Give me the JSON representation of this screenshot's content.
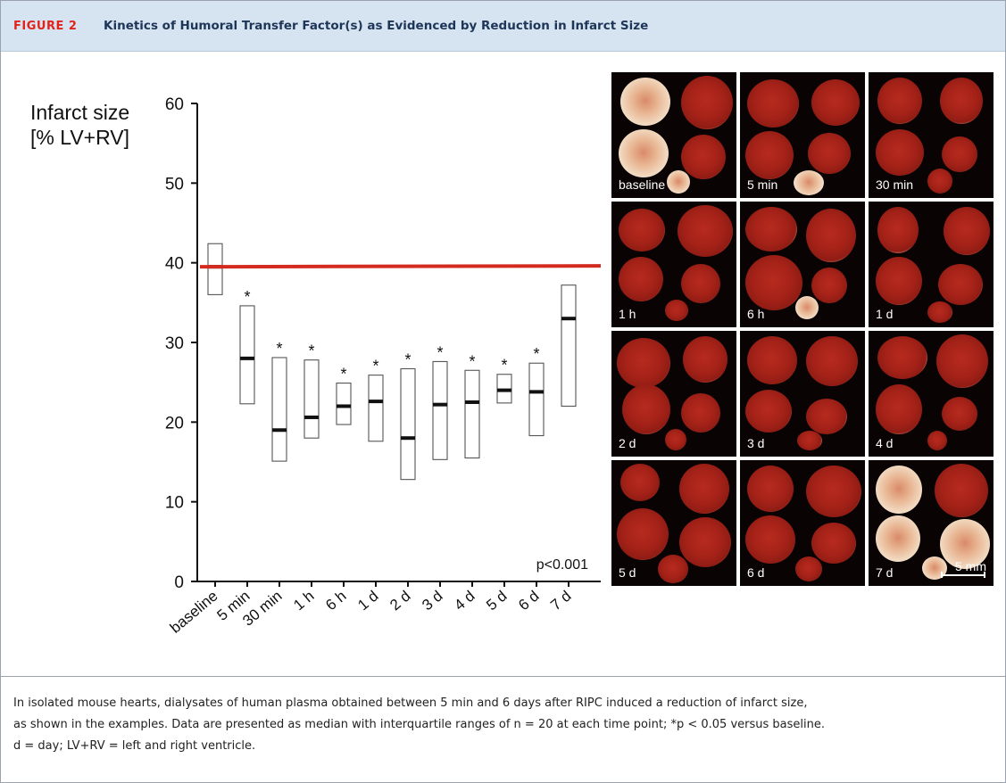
{
  "header": {
    "figure_label": "FIGURE 2",
    "title": "Kinetics of Humoral Transfer Factor(s) as Evidenced by Reduction in Infarct Size"
  },
  "chart_data": {
    "type": "box",
    "ylabel_line1": "Infarct size",
    "ylabel_line2": "[% LV+RV]",
    "ylim": [
      0,
      60
    ],
    "yticks": [
      0,
      10,
      20,
      30,
      40,
      50,
      60
    ],
    "grid": false,
    "categories": [
      "baseline",
      "5 min",
      "30 min",
      "1 h",
      "6 h",
      "1 d",
      "2 d",
      "3 d",
      "4 d",
      "5 d",
      "6 d",
      "7 d"
    ],
    "median": [
      39.5,
      28,
      19,
      20.6,
      22,
      22.6,
      18,
      22.2,
      22.5,
      24,
      23.8,
      33
    ],
    "q1": [
      36,
      22.3,
      15.1,
      18,
      19.7,
      17.6,
      12.8,
      15.3,
      15.5,
      22.4,
      18.3,
      22
    ],
    "q3": [
      42.4,
      34.6,
      28.1,
      27.8,
      24.9,
      25.9,
      26.7,
      27.6,
      26.5,
      26,
      27.4,
      37.2
    ],
    "significant": [
      false,
      true,
      true,
      true,
      true,
      true,
      true,
      true,
      true,
      true,
      true,
      false
    ],
    "significance_marker": "*",
    "reference_line": {
      "value": 39.5,
      "color": "#d42a20"
    },
    "annotation": "p<0.001"
  },
  "photos": {
    "panels": [
      "baseline",
      "5 min",
      "30 min",
      "1 h",
      "6 h",
      "1 d",
      "2 d",
      "3 d",
      "4 d",
      "5 d",
      "6 d",
      "7 d"
    ],
    "scale_label": "5 mm"
  },
  "caption": {
    "line1": "In isolated mouse hearts, dialysates of human plasma obtained between 5 min and 6 days after RIPC induced a reduction of infarct size,",
    "line2": "as shown in the examples. Data are presented as median with interquartile ranges of n = 20 at each time point; *p < 0.05 versus baseline.",
    "line3": "d = day; LV+RV = left and right ventricle."
  }
}
